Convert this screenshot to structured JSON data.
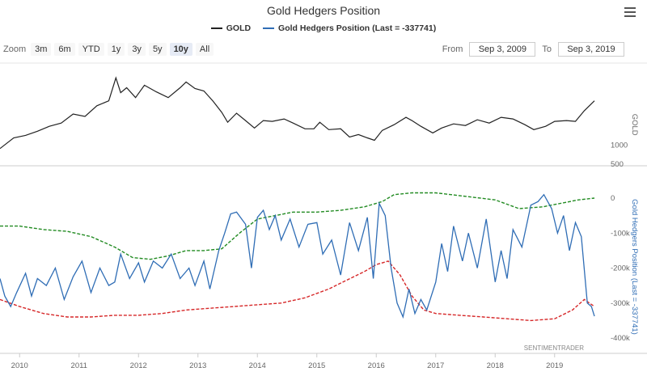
{
  "title": "Gold Hedgers Position",
  "legend": {
    "gold": "GOLD",
    "hedgers": "Gold Hedgers Position (Last = -337741)"
  },
  "zoom": {
    "label": "Zoom",
    "buttons": [
      "3m",
      "6m",
      "YTD",
      "1y",
      "3y",
      "5y",
      "10y",
      "All"
    ],
    "active": "10y"
  },
  "range": {
    "from_label": "From",
    "from": "Sep 3, 2009",
    "to_label": "To",
    "to": "Sep 3, 2019"
  },
  "credit": "SENTIMENTRADER",
  "colors": {
    "gold": "#222222",
    "hedgers": "#2f6db5",
    "upper_band": "#228b22",
    "lower_band": "#d62728",
    "grid": "#e6e6e6"
  },
  "chart_data": [
    {
      "type": "line",
      "name": "GOLD",
      "xlim": [
        2009.67,
        2019.67
      ],
      "ylim": [
        750,
        2000
      ],
      "yticks": [
        1000
      ],
      "xticks": [
        2010,
        2011,
        2012,
        2013,
        2014,
        2015,
        2016,
        2017,
        2018,
        2019
      ],
      "series": [
        {
          "name": "GOLD",
          "x": [
            2009.67,
            2009.9,
            2010.1,
            2010.3,
            2010.5,
            2010.7,
            2010.9,
            2011.1,
            2011.3,
            2011.5,
            2011.62,
            2011.7,
            2011.8,
            2011.95,
            2012.1,
            2012.3,
            2012.5,
            2012.7,
            2012.8,
            2012.95,
            2013.1,
            2013.25,
            2013.4,
            2013.5,
            2013.65,
            2013.8,
            2013.95,
            2014.1,
            2014.25,
            2014.45,
            2014.6,
            2014.8,
            2014.95,
            2015.05,
            2015.2,
            2015.4,
            2015.55,
            2015.7,
            2015.85,
            2015.97,
            2016.1,
            2016.3,
            2016.5,
            2016.6,
            2016.75,
            2016.95,
            2017.1,
            2017.3,
            2017.5,
            2017.7,
            2017.9,
            2018.1,
            2018.3,
            2018.5,
            2018.65,
            2018.85,
            2019.0,
            2019.2,
            2019.35,
            2019.5,
            2019.67
          ],
          "values": [
            960,
            1090,
            1120,
            1170,
            1230,
            1270,
            1380,
            1350,
            1480,
            1540,
            1820,
            1640,
            1700,
            1580,
            1730,
            1650,
            1580,
            1700,
            1770,
            1690,
            1660,
            1540,
            1400,
            1280,
            1390,
            1300,
            1210,
            1300,
            1290,
            1320,
            1270,
            1200,
            1200,
            1280,
            1190,
            1200,
            1100,
            1130,
            1090,
            1060,
            1180,
            1250,
            1340,
            1300,
            1230,
            1150,
            1210,
            1260,
            1240,
            1310,
            1270,
            1340,
            1320,
            1250,
            1190,
            1230,
            1290,
            1300,
            1290,
            1420,
            1540
          ]
        }
      ]
    },
    {
      "type": "line",
      "name": "Gold Hedgers Position",
      "ylabel": "Gold Hedgers Position (Last = -337741)",
      "xlim": [
        2009.67,
        2019.67
      ],
      "ylim": [
        -400000,
        0
      ],
      "yticks_labels": [
        "500",
        "0",
        "-100k",
        "-200k",
        "-300k",
        "-400k"
      ],
      "xticks": [
        2010,
        2011,
        2012,
        2013,
        2014,
        2015,
        2016,
        2017,
        2018,
        2019
      ],
      "series": [
        {
          "name": "Gold Hedgers Position (Last = -337741)",
          "x": [
            2009.67,
            2009.75,
            2009.85,
            2009.95,
            2010.1,
            2010.2,
            2010.3,
            2010.45,
            2010.6,
            2010.75,
            2010.9,
            2011.05,
            2011.2,
            2011.35,
            2011.5,
            2011.6,
            2011.7,
            2011.85,
            2012.0,
            2012.1,
            2012.25,
            2012.4,
            2012.55,
            2012.7,
            2012.85,
            2012.95,
            2013.1,
            2013.2,
            2013.35,
            2013.45,
            2013.55,
            2013.65,
            2013.8,
            2013.9,
            2014.0,
            2014.1,
            2014.2,
            2014.3,
            2014.4,
            2014.55,
            2014.7,
            2014.85,
            2015.0,
            2015.1,
            2015.25,
            2015.4,
            2015.55,
            2015.7,
            2015.85,
            2015.95,
            2016.05,
            2016.15,
            2016.25,
            2016.35,
            2016.45,
            2016.55,
            2016.65,
            2016.75,
            2016.85,
            2017.0,
            2017.1,
            2017.2,
            2017.3,
            2017.45,
            2017.55,
            2017.7,
            2017.85,
            2018.0,
            2018.1,
            2018.2,
            2018.3,
            2018.45,
            2018.6,
            2018.72,
            2018.82,
            2018.95,
            2019.05,
            2019.15,
            2019.25,
            2019.35,
            2019.45,
            2019.55,
            2019.62,
            2019.67
          ],
          "values": [
            -230000,
            -280000,
            -310000,
            -270000,
            -215000,
            -280000,
            -230000,
            -250000,
            -200000,
            -290000,
            -225000,
            -180000,
            -270000,
            -200000,
            -250000,
            -240000,
            -160000,
            -230000,
            -185000,
            -240000,
            -180000,
            -200000,
            -160000,
            -230000,
            -200000,
            -250000,
            -180000,
            -260000,
            -150000,
            -100000,
            -45000,
            -40000,
            -75000,
            -200000,
            -55000,
            -35000,
            -90000,
            -50000,
            -120000,
            -60000,
            -140000,
            -75000,
            -70000,
            -160000,
            -120000,
            -220000,
            -70000,
            -150000,
            -55000,
            -230000,
            -15000,
            -50000,
            -200000,
            -300000,
            -340000,
            -260000,
            -330000,
            -290000,
            -320000,
            -240000,
            -130000,
            -210000,
            -80000,
            -180000,
            -100000,
            -200000,
            -60000,
            -240000,
            -150000,
            -230000,
            -90000,
            -140000,
            -20000,
            -10000,
            10000,
            -30000,
            -100000,
            -50000,
            -150000,
            -70000,
            -110000,
            -300000,
            -310000,
            -337741
          ]
        },
        {
          "name": "upper band",
          "x": [
            2009.67,
            2010.0,
            2010.4,
            2010.8,
            2011.2,
            2011.6,
            2011.9,
            2012.2,
            2012.5,
            2012.8,
            2013.1,
            2013.4,
            2013.7,
            2014.0,
            2014.3,
            2014.6,
            2015.0,
            2015.4,
            2015.8,
            2016.1,
            2016.3,
            2016.6,
            2017.0,
            2017.5,
            2018.0,
            2018.4,
            2018.8,
            2019.1,
            2019.4,
            2019.67
          ],
          "values": [
            -80000,
            -80000,
            -90000,
            -95000,
            -110000,
            -140000,
            -170000,
            -175000,
            -165000,
            -150000,
            -150000,
            -145000,
            -100000,
            -60000,
            -50000,
            -40000,
            -40000,
            -35000,
            -25000,
            -10000,
            10000,
            15000,
            15000,
            5000,
            -5000,
            -30000,
            -25000,
            -15000,
            -5000,
            0
          ]
        },
        {
          "name": "lower band",
          "x": [
            2009.67,
            2010.0,
            2010.4,
            2010.8,
            2011.2,
            2011.6,
            2012.0,
            2012.4,
            2012.8,
            2013.2,
            2013.6,
            2014.0,
            2014.4,
            2014.8,
            2015.2,
            2015.5,
            2015.8,
            2016.0,
            2016.2,
            2016.4,
            2016.6,
            2016.8,
            2017.0,
            2017.4,
            2017.8,
            2018.2,
            2018.6,
            2019.0,
            2019.3,
            2019.5,
            2019.67
          ],
          "values": [
            -290000,
            -310000,
            -330000,
            -340000,
            -340000,
            -335000,
            -335000,
            -330000,
            -320000,
            -315000,
            -310000,
            -305000,
            -300000,
            -285000,
            -260000,
            -235000,
            -210000,
            -190000,
            -180000,
            -220000,
            -280000,
            -320000,
            -330000,
            -335000,
            -340000,
            -345000,
            -350000,
            -345000,
            -320000,
            -290000,
            -310000
          ]
        }
      ]
    }
  ]
}
